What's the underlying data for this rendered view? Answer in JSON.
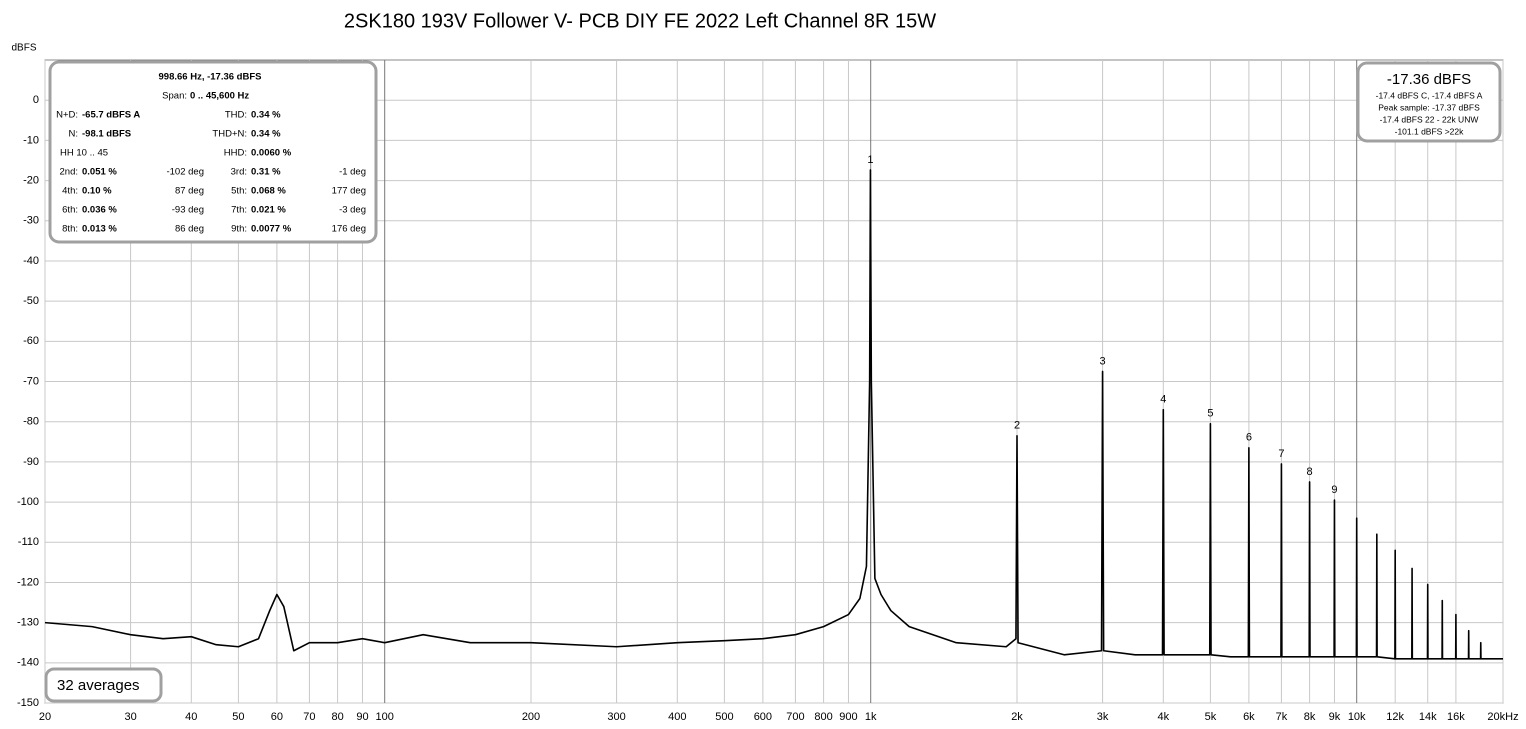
{
  "chart_data": {
    "type": "line",
    "title": "2SK180 193V Follower V- PCB DIY FE 2022 Left Channel 8R 15W",
    "y_label": "dBFS",
    "log_x": true,
    "grid": true,
    "xlim": [
      20,
      20000
    ],
    "ylim": [
      -150,
      10
    ],
    "xticks": [
      20,
      30,
      40,
      50,
      60,
      70,
      80,
      90,
      100,
      200,
      300,
      400,
      500,
      600,
      700,
      800,
      900,
      {
        "value": 1000,
        "label": "1k"
      },
      {
        "value": 2000,
        "label": "2k"
      },
      {
        "value": 3000,
        "label": "3k"
      },
      {
        "value": 4000,
        "label": "4k"
      },
      {
        "value": 5000,
        "label": "5k"
      },
      {
        "value": 6000,
        "label": "6k"
      },
      {
        "value": 7000,
        "label": "7k"
      },
      {
        "value": 8000,
        "label": "8k"
      },
      {
        "value": 9000,
        "label": "9k"
      },
      {
        "value": 10000,
        "label": "10k"
      },
      {
        "value": 12000,
        "label": "12k"
      },
      {
        "value": 14000,
        "label": "14k"
      },
      {
        "value": 16000,
        "label": "16k"
      },
      {
        "value": 20000,
        "label": "20kHz"
      }
    ],
    "yticks": [
      0,
      -10,
      -20,
      -30,
      -40,
      -50,
      -60,
      -70,
      -80,
      -90,
      -100,
      -110,
      -120,
      -130,
      -140,
      -150
    ],
    "x": [
      20,
      25,
      30,
      35,
      40,
      45,
      50,
      55,
      58,
      60,
      62,
      65,
      70,
      80,
      90,
      100,
      120,
      150,
      200,
      300,
      400,
      500,
      600,
      700,
      800,
      900,
      950,
      980,
      995,
      998.66,
      1003,
      1020,
      1050,
      1100,
      1200,
      1500,
      1900,
      1990,
      2000,
      2010,
      2500,
      2985,
      3000,
      3015,
      3500,
      3985,
      4000,
      4015,
      4500,
      4985,
      5000,
      5015,
      5500,
      5985,
      6000,
      6015,
      6500,
      6985,
      7000,
      7015,
      7500,
      7985,
      8000,
      8015,
      8500,
      8985,
      9000,
      9015,
      9500,
      9985,
      10000,
      10015,
      10985,
      11000,
      11015,
      11985,
      12000,
      12015,
      12985,
      13000,
      13015,
      13985,
      14000,
      14015,
      14985,
      15000,
      15015,
      15985,
      16000,
      16015,
      16985,
      17000,
      17015,
      17985,
      18000,
      18015,
      19000,
      20000
    ],
    "series": [
      {
        "name": "Left Channel",
        "color": "#000000",
        "values": [
          -130,
          -131,
          -133,
          -134,
          -133.5,
          -135.5,
          -136,
          -134,
          -127,
          -123,
          -126,
          -137,
          -135,
          -135,
          -134,
          -135,
          -133,
          -135,
          -135,
          -136,
          -135,
          -134.5,
          -134,
          -133,
          -131,
          -128,
          -124,
          -116,
          -70,
          -17.36,
          -70,
          -119,
          -123,
          -127,
          -131,
          -135,
          -136,
          -134,
          -83.5,
          -135,
          -138,
          -137,
          -67.5,
          -137,
          -138,
          -138,
          -77,
          -138,
          -138,
          -138,
          -80.5,
          -138,
          -138.5,
          -138.5,
          -86.5,
          -138.5,
          -138.5,
          -138.5,
          -90.5,
          -138.5,
          -138.5,
          -138.5,
          -95,
          -138.5,
          -138.5,
          -138.5,
          -99.5,
          -138.5,
          -138.5,
          -138.5,
          -104,
          -138.5,
          -138.5,
          -108,
          -138.5,
          -139,
          -112,
          -139,
          -139,
          -116.5,
          -139,
          -139,
          -120.5,
          -139,
          -139,
          -124.5,
          -139,
          -139,
          -128,
          -139,
          -139,
          -132,
          -139,
          -139,
          -135,
          -139,
          -139,
          -139
        ]
      }
    ],
    "peak_labels": [
      "1",
      "2",
      "3",
      "4",
      "5",
      "6",
      "7",
      "8",
      "9"
    ],
    "info_box": {
      "header": "998.66 Hz, -17.36 dBFS",
      "span": {
        "label": "Span:",
        "value": "0 .. 45,600 Hz"
      },
      "rows": [
        {
          "label": "N+D:",
          "value": "-65.7 dBFS A",
          "label2": "THD:",
          "value2": "0.34 %"
        },
        {
          "label": "N:",
          "value": "-98.1 dBFS",
          "label2": "THD+N:",
          "value2": "0.34 %"
        },
        {
          "note": "HH 10 .. 45",
          "label2": "HHD:",
          "value2": "0.0060 %"
        },
        {
          "label": "2nd:",
          "value": "0.051 %",
          "phase": "-102 deg",
          "label2": "3rd:",
          "value2": "0.31 %",
          "phase2": "-1 deg"
        },
        {
          "label": "4th:",
          "value": "0.10 %",
          "phase": "87 deg",
          "label2": "5th:",
          "value2": "0.068 %",
          "phase2": "177 deg"
        },
        {
          "label": "6th:",
          "value": "0.036 %",
          "phase": "-93 deg",
          "label2": "7th:",
          "value2": "0.021 %",
          "phase2": "-3 deg"
        },
        {
          "label": "8th:",
          "value": "0.013 %",
          "phase": "86 deg",
          "label2": "9th:",
          "value2": "0.0077 %",
          "phase2": "176 deg"
        }
      ]
    },
    "level_box": {
      "main": "-17.36 dBFS",
      "lines": [
        "-17.4 dBFS C, -17.4 dBFS A",
        "Peak sample: -17.37 dBFS",
        "-17.4 dBFS 22 - 22k UNW",
        "-101.1 dBFS >22k"
      ]
    },
    "averages": "32 averages"
  }
}
